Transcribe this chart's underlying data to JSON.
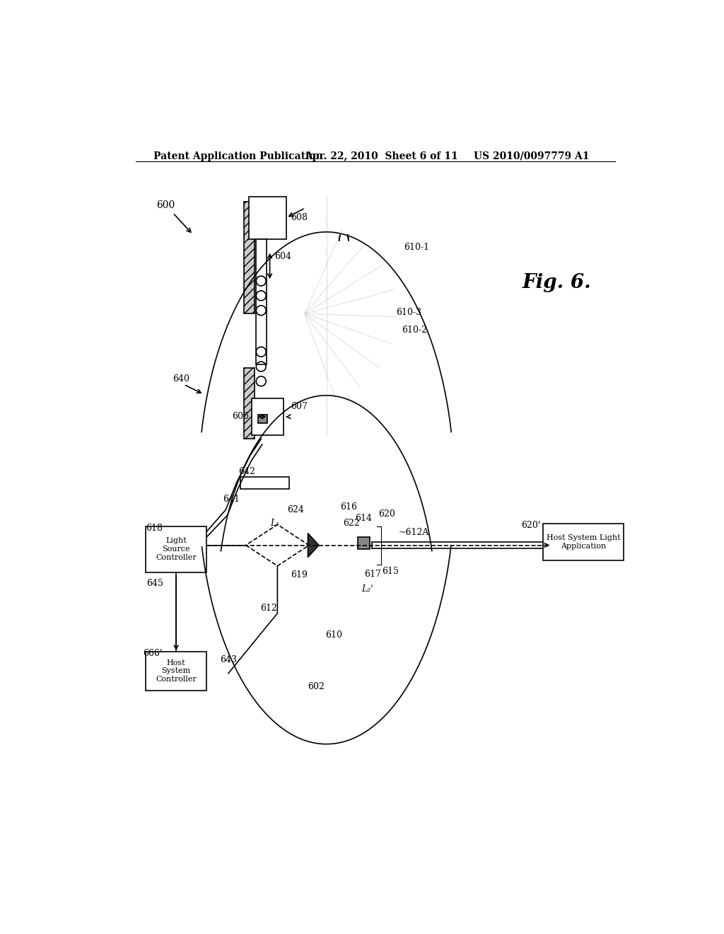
{
  "title_left": "Patent Application Publication",
  "title_mid": "Apr. 22, 2010  Sheet 6 of 11",
  "title_right": "US 2010/0097779 A1",
  "fig_label": "Fig. 6.",
  "ref_600": "600",
  "ref_602": "602",
  "ref_604": "604",
  "ref_606": "606",
  "ref_607": "607",
  "ref_608": "608",
  "ref_610_1": "610-1",
  "ref_610_2": "610-2",
  "ref_610_3": "610-3",
  "ref_610": "610",
  "ref_612": "612",
  "ref_612A": "~612A",
  "ref_614": "614",
  "ref_615": "615",
  "ref_616": "616",
  "ref_617": "617",
  "ref_618": "618",
  "ref_619": "619",
  "ref_620": "620",
  "ref_620p": "620'",
  "ref_622": "622",
  "ref_624": "624",
  "ref_640": "640",
  "ref_641": "641",
  "ref_642": "642",
  "ref_643": "643",
  "ref_645": "645",
  "ref_666p": "666'",
  "ref_L1": "L₁",
  "ref_L2p": "L₂'",
  "box_light_source": "Light\nSource\nController",
  "box_host_system": "Host\nSystem\nController",
  "box_host_app": "Host System Light\nApplication",
  "bg_color": "#ffffff",
  "line_color": "#000000",
  "gray_color": "#888888",
  "light_gray": "#cccccc"
}
